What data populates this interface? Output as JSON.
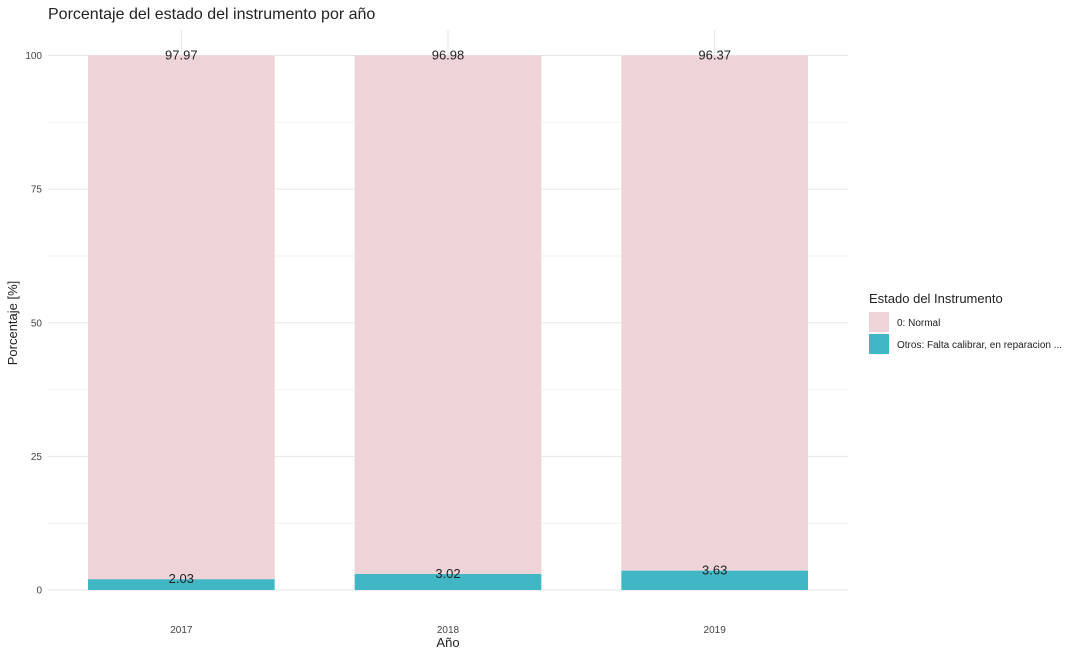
{
  "chart_data": {
    "type": "bar",
    "stacked": true,
    "title": "Porcentaje del estado del instrumento por año",
    "xlabel": "Año",
    "ylabel": "Porcentaje [%]",
    "categories": [
      "2017",
      "2018",
      "2019"
    ],
    "ylim": [
      0,
      100
    ],
    "yticks": [
      0,
      25,
      50,
      75,
      100
    ],
    "grid": true,
    "legend": {
      "title": "Estado del Instrumento",
      "position": "right"
    },
    "series": [
      {
        "name": "Otros: Falta calibrar, en reparacion ...",
        "color": "#41B6C4",
        "values": [
          2.03,
          3.02,
          3.63
        ],
        "labels": [
          "2.03",
          "3.02",
          "3.63"
        ]
      },
      {
        "name": "0: Normal",
        "color": "#EED3D8",
        "values": [
          97.97,
          96.98,
          96.37
        ],
        "labels": [
          "97.97",
          "96.98",
          "96.37"
        ]
      }
    ],
    "legend_order": [
      1,
      0
    ]
  }
}
